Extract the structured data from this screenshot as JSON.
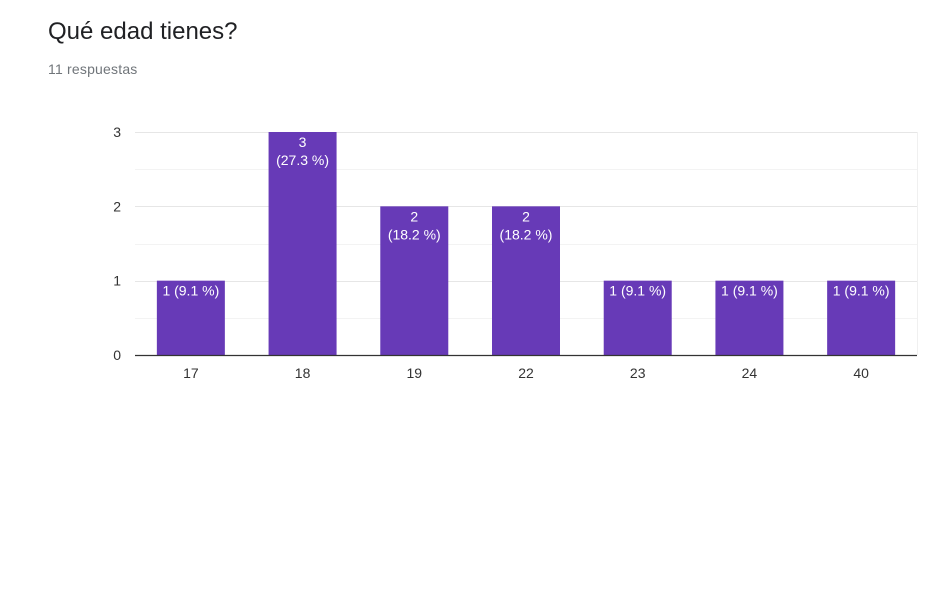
{
  "question": {
    "title": "Qué edad tienes?",
    "responses": "11 respuestas"
  },
  "colors": {
    "bar": "#673ab7",
    "bar_label": "#ffffff",
    "axis_text": "#333333",
    "gridline": "#ebebeb",
    "axis_line": "#333333"
  },
  "chart_data": {
    "type": "bar",
    "categories": [
      "17",
      "18",
      "19",
      "22",
      "23",
      "24",
      "40"
    ],
    "values": [
      1,
      3,
      2,
      2,
      1,
      1,
      1
    ],
    "data_labels": [
      [
        "1 (9.1 %)"
      ],
      [
        "3",
        "(27.3 %)"
      ],
      [
        "2",
        "(18.2 %)"
      ],
      [
        "2",
        "(18.2 %)"
      ],
      [
        "1 (9.1 %)"
      ],
      [
        "1 (9.1 %)"
      ],
      [
        "1 (9.1 %)"
      ]
    ],
    "y_ticks": [
      "0",
      "1",
      "2",
      "3"
    ],
    "ylim": [
      0,
      3
    ],
    "title": "",
    "xlabel": "",
    "ylabel": "",
    "grid": true
  }
}
